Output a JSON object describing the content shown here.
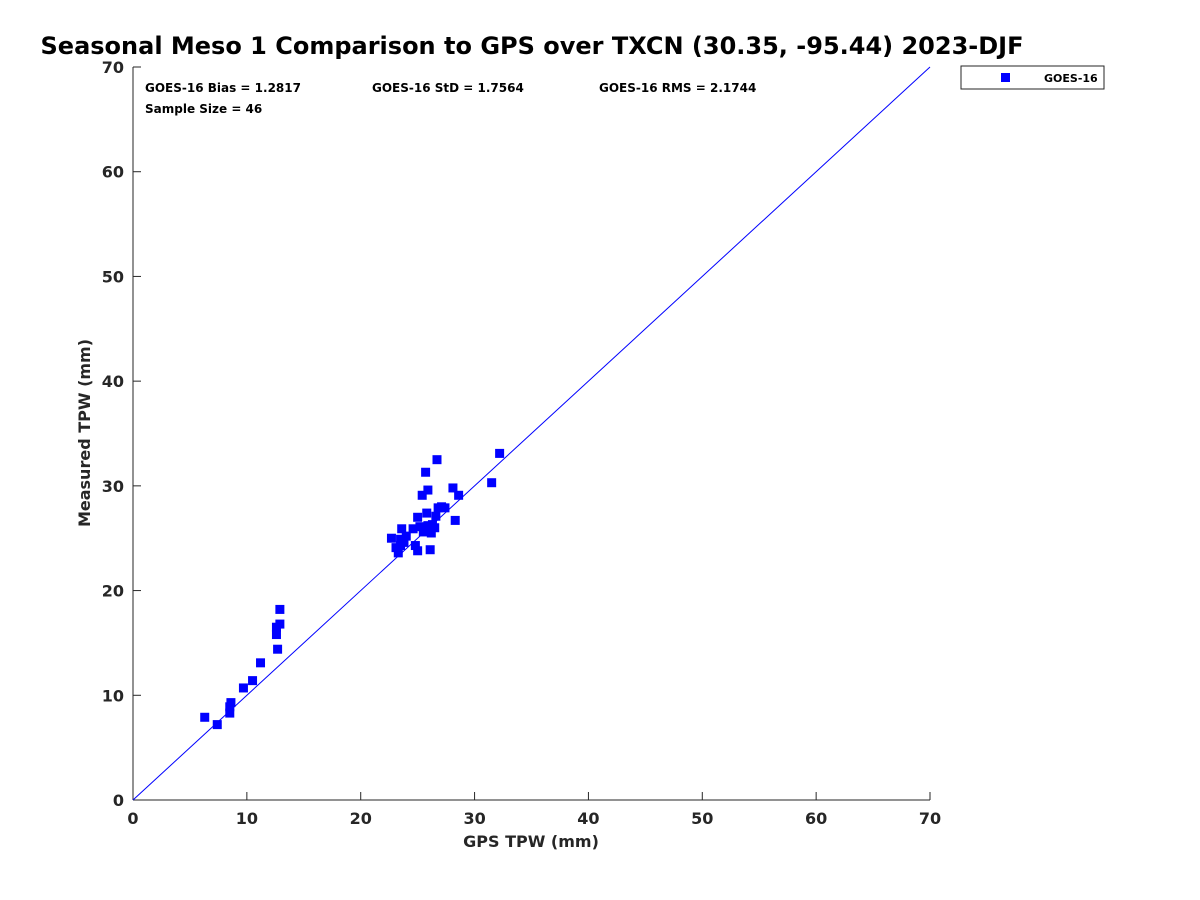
{
  "chart_data": {
    "type": "scatter",
    "title": "Seasonal Meso 1 Comparison to GPS over TXCN (30.35, -95.44) 2023-DJF",
    "xlabel": "GPS TPW (mm)",
    "ylabel": "Measured TPW (mm)",
    "xlim": [
      0,
      70
    ],
    "ylim": [
      0,
      70
    ],
    "xticks": [
      0,
      10,
      20,
      30,
      40,
      50,
      60,
      70
    ],
    "yticks": [
      0,
      10,
      20,
      30,
      40,
      50,
      60,
      70
    ],
    "grid": false,
    "legend": "top-right, outside axes",
    "stats": {
      "bias": "GOES-16 Bias = 1.2817",
      "std": "GOES-16 StD = 1.7564",
      "rms": "GOES-16 RMS = 2.1744",
      "sample_size": "Sample Size = 46"
    },
    "reference_line": {
      "x": [
        0,
        70
      ],
      "y": [
        0,
        70
      ],
      "color": "#0000ff"
    },
    "series": [
      {
        "name": "GOES-16",
        "color": "#0000ff",
        "marker": "square",
        "points": [
          [
            6.3,
            7.9
          ],
          [
            7.4,
            7.2
          ],
          [
            8.5,
            8.3
          ],
          [
            8.5,
            8.9
          ],
          [
            8.6,
            9.3
          ],
          [
            9.7,
            10.7
          ],
          [
            10.5,
            11.4
          ],
          [
            11.2,
            13.1
          ],
          [
            12.7,
            14.4
          ],
          [
            12.6,
            15.8
          ],
          [
            12.6,
            16.5
          ],
          [
            12.9,
            16.8
          ],
          [
            12.9,
            18.2
          ],
          [
            22.7,
            25.0
          ],
          [
            23.1,
            24.1
          ],
          [
            23.3,
            23.6
          ],
          [
            23.5,
            24.9
          ],
          [
            23.6,
            25.9
          ],
          [
            23.8,
            24.6
          ],
          [
            23.5,
            24.3
          ],
          [
            24.0,
            25.2
          ],
          [
            24.6,
            25.9
          ],
          [
            24.8,
            24.3
          ],
          [
            25.0,
            23.8
          ],
          [
            25.0,
            27.0
          ],
          [
            25.2,
            26.1
          ],
          [
            25.5,
            25.6
          ],
          [
            25.4,
            29.1
          ],
          [
            25.7,
            31.3
          ],
          [
            25.8,
            27.4
          ],
          [
            25.9,
            29.6
          ],
          [
            25.9,
            26.2
          ],
          [
            26.1,
            23.9
          ],
          [
            26.2,
            25.5
          ],
          [
            26.3,
            26.3
          ],
          [
            26.5,
            26.0
          ],
          [
            26.6,
            27.1
          ],
          [
            26.7,
            32.5
          ],
          [
            26.8,
            27.9
          ],
          [
            27.4,
            27.9
          ],
          [
            28.1,
            29.8
          ],
          [
            28.3,
            26.7
          ],
          [
            28.6,
            29.1
          ],
          [
            31.5,
            30.3
          ],
          [
            32.2,
            33.1
          ],
          [
            27.1,
            28.0
          ]
        ]
      }
    ]
  }
}
